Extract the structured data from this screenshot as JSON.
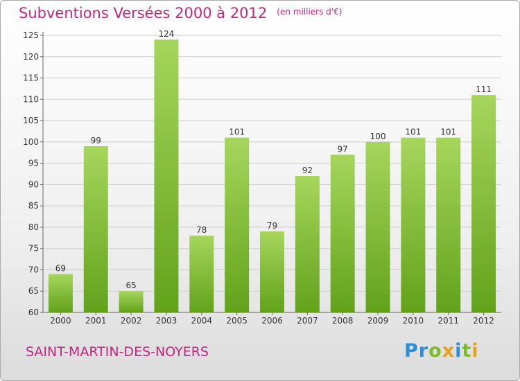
{
  "title": "Subventions Versées 2000 à 2012",
  "unit": "(en milliers d'€)",
  "commune": "SAINT-MARTIN-DES-NOYERS",
  "logo": {
    "letters": [
      "P",
      "r",
      "o",
      "x",
      "i",
      "t",
      "i"
    ],
    "colors": [
      "#2e8fd6",
      "#2e8fd6",
      "#7cbc2c",
      "#e8a21a",
      "#2e8fd6",
      "#7cbc2c",
      "#e8a21a"
    ]
  },
  "colors": {
    "accent": "#c0267e",
    "bar_light": "#a6d65c",
    "bar_dark": "#62a21b",
    "grid": "#cccccc"
  },
  "chart_data": {
    "type": "bar",
    "categories": [
      "2000",
      "2001",
      "2002",
      "2003",
      "2004",
      "2005",
      "2006",
      "2007",
      "2008",
      "2009",
      "2010",
      "2011",
      "2012"
    ],
    "values": [
      69,
      99,
      65,
      124,
      78,
      101,
      79,
      92,
      97,
      100,
      101,
      101,
      111
    ],
    "ylim": [
      60,
      125
    ],
    "yticks": [
      60,
      65,
      70,
      75,
      80,
      85,
      90,
      95,
      100,
      105,
      110,
      115,
      120,
      125
    ],
    "grid": true,
    "data_labels": true
  }
}
